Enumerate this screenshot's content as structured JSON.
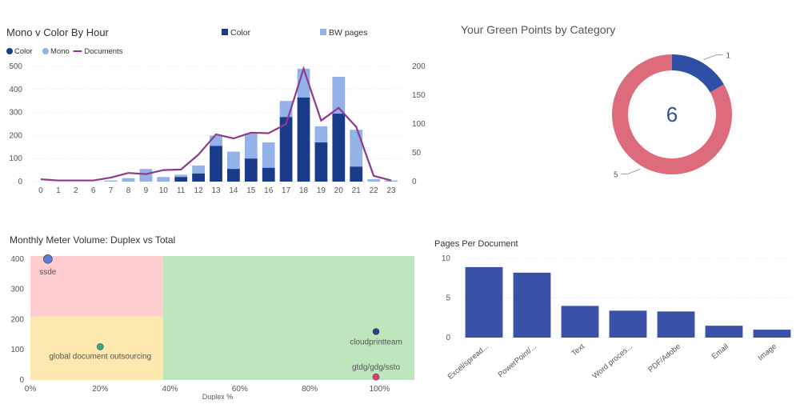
{
  "chart_data": [
    {
      "type": "bar",
      "title": "Mono v Color By Hour",
      "legend_top": [
        "Color",
        "BW pages"
      ],
      "legend_small": [
        "Color",
        "Mono",
        "Documents"
      ],
      "categories": [
        "0",
        "1",
        "2",
        "6",
        "7",
        "8",
        "9",
        "10",
        "11",
        "12",
        "13",
        "14",
        "15",
        "16",
        "17",
        "18",
        "19",
        "20",
        "21",
        "22",
        "23"
      ],
      "series": [
        {
          "name": "Color",
          "values": [
            0,
            0,
            0,
            0,
            0,
            0,
            0,
            0,
            20,
            35,
            155,
            55,
            100,
            60,
            280,
            365,
            170,
            295,
            65,
            0,
            0
          ],
          "color": "#1a3a8a"
        },
        {
          "name": "Mono",
          "values": [
            0,
            0,
            0,
            0,
            5,
            15,
            55,
            20,
            10,
            35,
            45,
            75,
            110,
            110,
            70,
            125,
            70,
            160,
            160,
            10,
            5
          ],
          "color": "#93b2e8"
        },
        {
          "name": "Documents",
          "values": [
            4,
            2,
            2,
            2,
            7,
            15,
            13,
            20,
            21,
            47,
            82,
            75,
            85,
            84,
            100,
            196,
            106,
            128,
            95,
            10,
            2
          ],
          "color": "#8e3a8e"
        }
      ],
      "ylim": [
        0,
        500
      ],
      "yticks": [
        "0",
        "100",
        "200",
        "300",
        "400",
        "500"
      ],
      "y2lim": [
        0,
        200
      ],
      "y2ticks": [
        "0",
        "50",
        "100",
        "150",
        "200"
      ]
    },
    {
      "type": "pie",
      "title": "Your Green Points by Category",
      "center_value": "6",
      "slices": [
        {
          "label": "1",
          "value": 1,
          "color": "#2e4fa3"
        },
        {
          "label": "5",
          "value": 5,
          "color": "#de6b7c"
        }
      ]
    },
    {
      "type": "scatter",
      "title": "Monthly Meter Volume: Duplex vs Total",
      "xlabel": "Duplex %",
      "xticks": [
        "0%",
        "20%",
        "40%",
        "60%",
        "80%",
        "100%"
      ],
      "yticks": [
        "0",
        "100",
        "200",
        "300",
        "400"
      ],
      "xlim": [
        0,
        1.1
      ],
      "ylim": [
        0,
        410
      ],
      "points": [
        {
          "label": "ssde",
          "x": 0.05,
          "y": 400,
          "color": "#5b7bd5"
        },
        {
          "label": "global document outsourcing",
          "x": 0.2,
          "y": 110,
          "color": "#3aa87a"
        },
        {
          "label": "cloudprintteam",
          "x": 0.99,
          "y": 160,
          "color": "#2b3f8f"
        },
        {
          "label": "gtdg/gdg/ssto",
          "x": 0.99,
          "y": 10,
          "color": "#d9416a"
        }
      ],
      "zones": {
        "colors": {
          "red": "#ffcccf",
          "yellow": "#fde9b0",
          "green": "#bfe5bc"
        },
        "x_split": 0.38,
        "y_split": 210
      }
    },
    {
      "type": "bar",
      "title": "Pages Per Document",
      "categories": [
        "Excel/spread...",
        "PowerPoint/...",
        "Text",
        "Word proces...",
        "PDF/Adobe",
        "Email",
        "Image"
      ],
      "values": [
        8.9,
        8.2,
        4.0,
        3.4,
        3.3,
        1.5,
        1.0
      ],
      "ylim": [
        0,
        10
      ],
      "yticks": [
        "0",
        "5",
        "10"
      ],
      "color": "#3a51a8"
    }
  ]
}
